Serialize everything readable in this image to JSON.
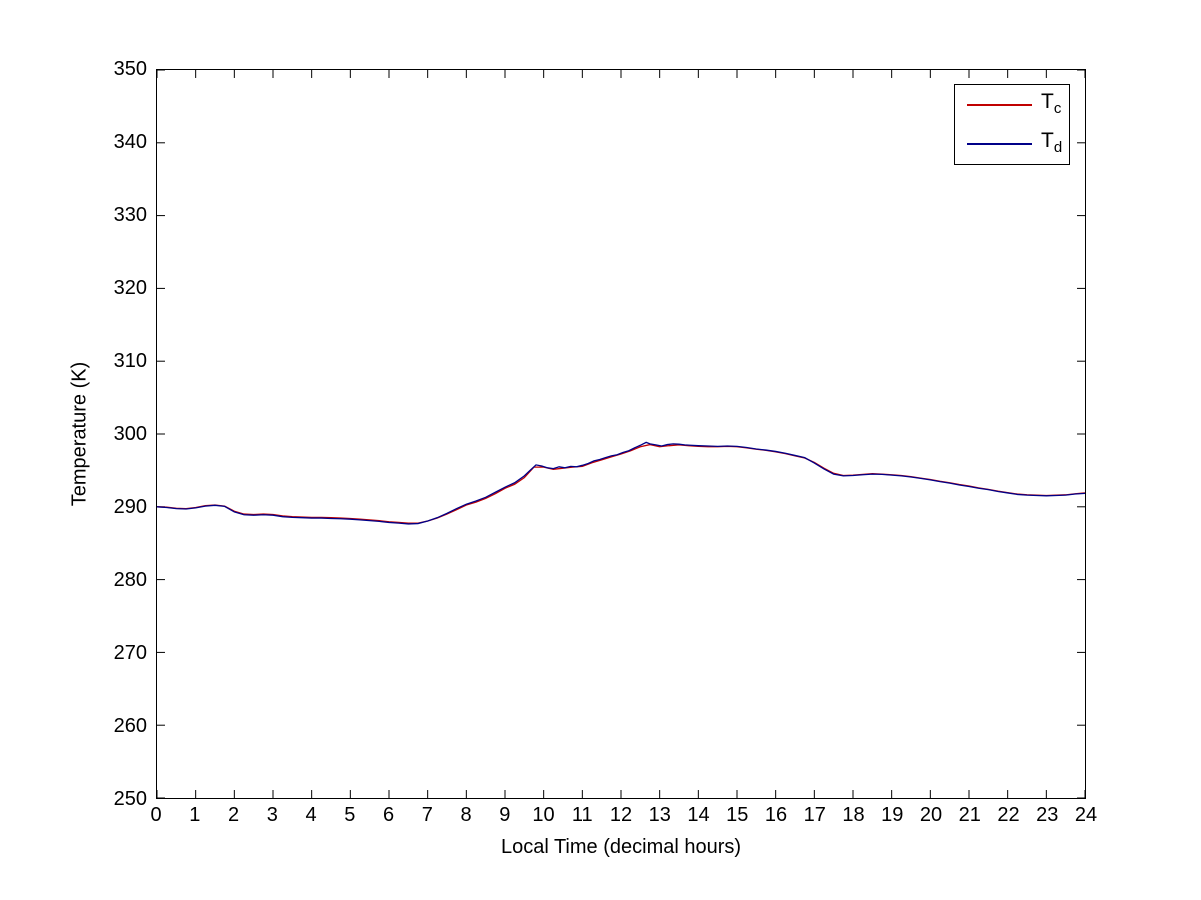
{
  "figure": {
    "background": "#ffffff",
    "axis_color": "#000000"
  },
  "chart_data": {
    "type": "line",
    "title": "",
    "xlabel": "Local Time (decimal hours)",
    "ylabel": "Temperature (K)",
    "xlim": [
      0,
      24
    ],
    "ylim": [
      250,
      350
    ],
    "xticks": [
      0,
      1,
      2,
      3,
      4,
      5,
      6,
      7,
      8,
      9,
      10,
      11,
      12,
      13,
      14,
      15,
      16,
      17,
      18,
      19,
      20,
      21,
      22,
      23,
      24
    ],
    "yticks": [
      250,
      260,
      270,
      280,
      290,
      300,
      310,
      320,
      330,
      340,
      350
    ],
    "grid": false,
    "legend": {
      "position": "top-right",
      "border_color": "#000000"
    },
    "series": [
      {
        "name": "Tc",
        "label_base": "T",
        "label_sub": "c",
        "color": "#c00000",
        "points": [
          [
            0,
            290.0
          ],
          [
            0.25,
            289.95
          ],
          [
            0.5,
            289.8
          ],
          [
            0.75,
            289.75
          ],
          [
            1.0,
            289.9
          ],
          [
            1.25,
            290.15
          ],
          [
            1.5,
            290.25
          ],
          [
            1.75,
            290.1
          ],
          [
            2.0,
            289.4
          ],
          [
            2.25,
            289.0
          ],
          [
            2.5,
            288.95
          ],
          [
            2.75,
            289.0
          ],
          [
            3.0,
            288.95
          ],
          [
            3.25,
            288.75
          ],
          [
            3.5,
            288.65
          ],
          [
            3.75,
            288.6
          ],
          [
            4.0,
            288.55
          ],
          [
            4.25,
            288.55
          ],
          [
            4.5,
            288.5
          ],
          [
            4.75,
            288.45
          ],
          [
            5.0,
            288.4
          ],
          [
            5.25,
            288.3
          ],
          [
            5.5,
            288.2
          ],
          [
            5.75,
            288.1
          ],
          [
            6.0,
            287.95
          ],
          [
            6.25,
            287.85
          ],
          [
            6.5,
            287.75
          ],
          [
            6.75,
            287.75
          ],
          [
            7.0,
            288.05
          ],
          [
            7.25,
            288.45
          ],
          [
            7.5,
            289.0
          ],
          [
            7.75,
            289.6
          ],
          [
            8.0,
            290.25
          ],
          [
            8.25,
            290.65
          ],
          [
            8.5,
            291.15
          ],
          [
            8.75,
            291.8
          ],
          [
            9.0,
            292.55
          ],
          [
            9.25,
            293.1
          ],
          [
            9.5,
            294.0
          ],
          [
            9.75,
            295.45
          ],
          [
            10.0,
            295.45
          ],
          [
            10.25,
            295.15
          ],
          [
            10.5,
            295.3
          ],
          [
            10.75,
            295.45
          ],
          [
            11.0,
            295.55
          ],
          [
            11.25,
            296.05
          ],
          [
            11.5,
            296.45
          ],
          [
            11.75,
            296.85
          ],
          [
            12.0,
            297.25
          ],
          [
            12.25,
            297.7
          ],
          [
            12.5,
            298.25
          ],
          [
            12.75,
            298.55
          ],
          [
            13.0,
            298.25
          ],
          [
            13.25,
            298.4
          ],
          [
            13.5,
            298.5
          ],
          [
            13.75,
            298.4
          ],
          [
            14.0,
            298.3
          ],
          [
            14.25,
            298.25
          ],
          [
            14.5,
            298.25
          ],
          [
            14.75,
            298.3
          ],
          [
            15.0,
            298.25
          ],
          [
            15.25,
            298.1
          ],
          [
            15.5,
            297.9
          ],
          [
            15.75,
            297.75
          ],
          [
            16.0,
            297.55
          ],
          [
            16.25,
            297.3
          ],
          [
            16.5,
            297.0
          ],
          [
            16.75,
            296.7
          ],
          [
            17.0,
            296.1
          ],
          [
            17.25,
            295.3
          ],
          [
            17.5,
            294.6
          ],
          [
            17.75,
            294.3
          ],
          [
            18.0,
            294.35
          ],
          [
            18.25,
            294.45
          ],
          [
            18.5,
            294.55
          ],
          [
            18.75,
            294.5
          ],
          [
            19.0,
            294.4
          ],
          [
            19.25,
            294.3
          ],
          [
            19.5,
            294.15
          ],
          [
            19.75,
            293.95
          ],
          [
            20.0,
            293.75
          ],
          [
            20.25,
            293.5
          ],
          [
            20.5,
            293.3
          ],
          [
            20.75,
            293.05
          ],
          [
            21.0,
            292.85
          ],
          [
            21.25,
            292.6
          ],
          [
            21.5,
            292.4
          ],
          [
            21.75,
            292.15
          ],
          [
            22.0,
            291.95
          ],
          [
            22.25,
            291.75
          ],
          [
            22.5,
            291.65
          ],
          [
            22.75,
            291.6
          ],
          [
            23.0,
            291.55
          ],
          [
            23.25,
            291.6
          ],
          [
            23.5,
            291.65
          ],
          [
            23.75,
            291.8
          ],
          [
            24.0,
            291.9
          ]
        ]
      },
      {
        "name": "Td",
        "label_base": "T",
        "label_sub": "d",
        "color": "#000088",
        "points": [
          [
            0,
            290.0
          ],
          [
            0.25,
            289.9
          ],
          [
            0.5,
            289.75
          ],
          [
            0.75,
            289.7
          ],
          [
            1.0,
            289.85
          ],
          [
            1.25,
            290.1
          ],
          [
            1.5,
            290.2
          ],
          [
            1.75,
            290.05
          ],
          [
            2.0,
            289.3
          ],
          [
            2.25,
            288.9
          ],
          [
            2.5,
            288.85
          ],
          [
            2.75,
            288.9
          ],
          [
            3.0,
            288.85
          ],
          [
            3.25,
            288.65
          ],
          [
            3.5,
            288.55
          ],
          [
            3.75,
            288.5
          ],
          [
            4.0,
            288.45
          ],
          [
            4.25,
            288.45
          ],
          [
            4.5,
            288.4
          ],
          [
            4.75,
            288.35
          ],
          [
            5.0,
            288.3
          ],
          [
            5.25,
            288.2
          ],
          [
            5.5,
            288.1
          ],
          [
            5.75,
            288.0
          ],
          [
            6.0,
            287.85
          ],
          [
            6.25,
            287.75
          ],
          [
            6.5,
            287.65
          ],
          [
            6.75,
            287.7
          ],
          [
            7.0,
            288.05
          ],
          [
            7.25,
            288.5
          ],
          [
            7.5,
            289.1
          ],
          [
            7.75,
            289.75
          ],
          [
            8.0,
            290.35
          ],
          [
            8.25,
            290.8
          ],
          [
            8.5,
            291.3
          ],
          [
            8.75,
            292.0
          ],
          [
            9.0,
            292.7
          ],
          [
            9.25,
            293.3
          ],
          [
            9.5,
            294.25
          ],
          [
            9.65,
            295.0
          ],
          [
            9.8,
            295.75
          ],
          [
            9.95,
            295.6
          ],
          [
            10.1,
            295.35
          ],
          [
            10.25,
            295.25
          ],
          [
            10.4,
            295.5
          ],
          [
            10.55,
            295.35
          ],
          [
            10.7,
            295.55
          ],
          [
            10.85,
            295.5
          ],
          [
            11.0,
            295.7
          ],
          [
            11.15,
            295.95
          ],
          [
            11.3,
            296.3
          ],
          [
            11.45,
            296.5
          ],
          [
            11.6,
            296.75
          ],
          [
            11.75,
            297.0
          ],
          [
            11.9,
            297.15
          ],
          [
            12.05,
            297.45
          ],
          [
            12.2,
            297.7
          ],
          [
            12.35,
            298.1
          ],
          [
            12.5,
            298.45
          ],
          [
            12.65,
            298.85
          ],
          [
            12.75,
            298.65
          ],
          [
            12.9,
            298.5
          ],
          [
            13.05,
            298.35
          ],
          [
            13.2,
            298.55
          ],
          [
            13.35,
            298.65
          ],
          [
            13.5,
            298.6
          ],
          [
            13.65,
            298.5
          ],
          [
            13.8,
            298.45
          ],
          [
            14.0,
            298.4
          ],
          [
            14.25,
            298.35
          ],
          [
            14.5,
            298.3
          ],
          [
            14.75,
            298.35
          ],
          [
            15.0,
            298.3
          ],
          [
            15.25,
            298.15
          ],
          [
            15.5,
            297.95
          ],
          [
            15.75,
            297.8
          ],
          [
            16.0,
            297.6
          ],
          [
            16.25,
            297.35
          ],
          [
            16.5,
            297.05
          ],
          [
            16.75,
            296.75
          ],
          [
            17.0,
            296.0
          ],
          [
            17.25,
            295.2
          ],
          [
            17.5,
            294.5
          ],
          [
            17.75,
            294.25
          ],
          [
            18.0,
            294.3
          ],
          [
            18.25,
            294.4
          ],
          [
            18.5,
            294.5
          ],
          [
            18.75,
            294.45
          ],
          [
            19.0,
            294.35
          ],
          [
            19.25,
            294.25
          ],
          [
            19.5,
            294.1
          ],
          [
            19.75,
            293.9
          ],
          [
            20.0,
            293.7
          ],
          [
            20.25,
            293.45
          ],
          [
            20.5,
            293.25
          ],
          [
            20.75,
            293.0
          ],
          [
            21.0,
            292.8
          ],
          [
            21.25,
            292.55
          ],
          [
            21.5,
            292.35
          ],
          [
            21.75,
            292.1
          ],
          [
            22.0,
            291.9
          ],
          [
            22.25,
            291.7
          ],
          [
            22.5,
            291.6
          ],
          [
            22.75,
            291.55
          ],
          [
            23.0,
            291.5
          ],
          [
            23.25,
            291.55
          ],
          [
            23.5,
            291.6
          ],
          [
            23.75,
            291.75
          ],
          [
            24.0,
            291.85
          ]
        ]
      }
    ]
  }
}
